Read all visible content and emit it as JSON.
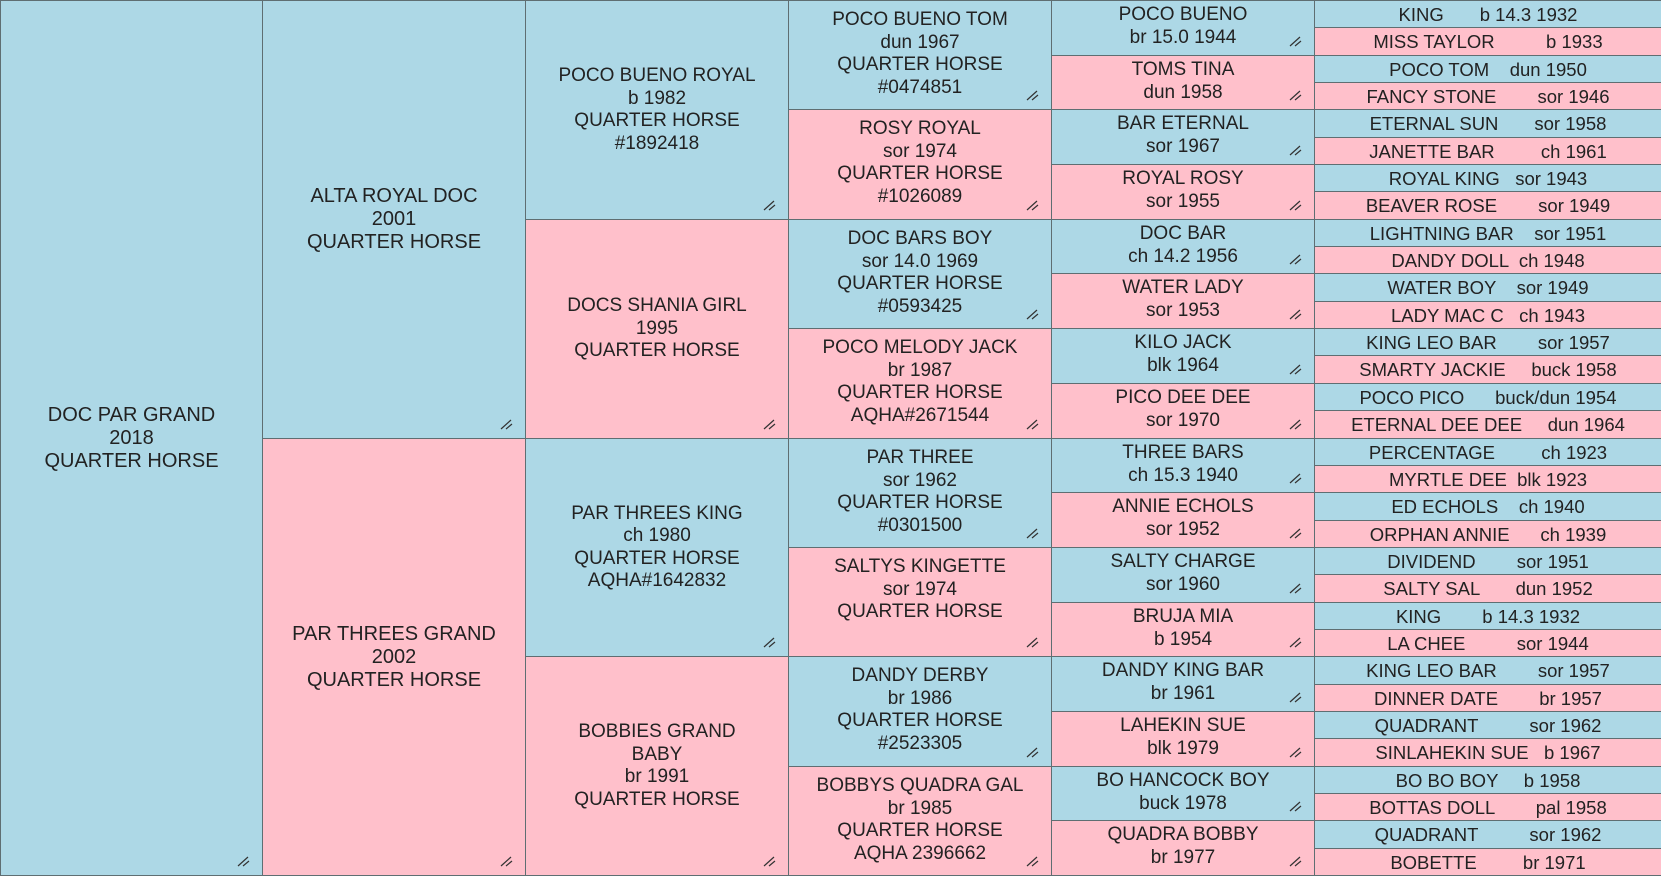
{
  "colors": {
    "male": "#add8e6",
    "female": "#ffc0cb",
    "border": "#5f6e72"
  },
  "icon": "edit-resize-icon",
  "subject": {
    "lines": [
      "DOC PAR GRAND",
      "2018",
      "QUARTER HORSE"
    ],
    "sex": "m"
  },
  "parents": [
    {
      "lines": [
        "ALTA ROYAL DOC",
        "2001",
        "QUARTER HORSE"
      ],
      "sex": "m"
    },
    {
      "lines": [
        "PAR THREES GRAND",
        "2002",
        "QUARTER HORSE"
      ],
      "sex": "f"
    }
  ],
  "grandparents": [
    {
      "lines": [
        "POCO BUENO ROYAL",
        "b 1982",
        "QUARTER HORSE",
        "#1892418"
      ],
      "sex": "m"
    },
    {
      "lines": [
        "DOCS SHANIA GIRL",
        "1995",
        "QUARTER HORSE"
      ],
      "sex": "f"
    },
    {
      "lines": [
        "PAR THREES KING",
        "ch 1980",
        "QUARTER HORSE",
        "AQHA#1642832"
      ],
      "sex": "m"
    },
    {
      "lines": [
        "BOBBIES GRAND",
        "BABY",
        "br 1991",
        "QUARTER HORSE"
      ],
      "sex": "f"
    }
  ],
  "great_grandparents": [
    {
      "lines": [
        "POCO BUENO TOM",
        "dun 1967",
        "QUARTER HORSE",
        "#0474851"
      ],
      "sex": "m"
    },
    {
      "lines": [
        "ROSY ROYAL",
        "sor 1974",
        "QUARTER HORSE",
        "#1026089"
      ],
      "sex": "f"
    },
    {
      "lines": [
        "DOC BARS BOY",
        "sor 14.0 1969",
        "QUARTER HORSE",
        "#0593425"
      ],
      "sex": "m"
    },
    {
      "lines": [
        "POCO MELODY JACK",
        "br 1987",
        "QUARTER HORSE",
        "AQHA#2671544"
      ],
      "sex": "f"
    },
    {
      "lines": [
        "PAR THREE",
        "sor 1962",
        "QUARTER HORSE",
        "#0301500"
      ],
      "sex": "m"
    },
    {
      "lines": [
        "SALTYS KINGETTE",
        "sor 1974",
        "QUARTER HORSE"
      ],
      "sex": "f"
    },
    {
      "lines": [
        "DANDY DERBY",
        "br 1986",
        "QUARTER HORSE",
        "#2523305"
      ],
      "sex": "m"
    },
    {
      "lines": [
        "BOBBYS QUADRA GAL",
        "br 1985",
        "QUARTER HORSE",
        "AQHA 2396662"
      ],
      "sex": "f"
    }
  ],
  "gen5": [
    {
      "lines": [
        "POCO BUENO",
        "br 15.0 1944"
      ],
      "sex": "m"
    },
    {
      "lines": [
        "TOMS TINA",
        "dun 1958"
      ],
      "sex": "f"
    },
    {
      "lines": [
        "BAR ETERNAL",
        "sor 1967"
      ],
      "sex": "m"
    },
    {
      "lines": [
        "ROYAL ROSY",
        "sor 1955"
      ],
      "sex": "f"
    },
    {
      "lines": [
        "DOC BAR",
        "ch 14.2 1956"
      ],
      "sex": "m"
    },
    {
      "lines": [
        "WATER LADY",
        "sor 1953"
      ],
      "sex": "f"
    },
    {
      "lines": [
        "KILO JACK",
        "blk 1964"
      ],
      "sex": "m"
    },
    {
      "lines": [
        "PICO DEE DEE",
        "sor 1970"
      ],
      "sex": "f"
    },
    {
      "lines": [
        "THREE BARS",
        "ch 15.3 1940"
      ],
      "sex": "m"
    },
    {
      "lines": [
        "ANNIE ECHOLS",
        "sor 1952"
      ],
      "sex": "f"
    },
    {
      "lines": [
        "SALTY CHARGE",
        "sor 1960"
      ],
      "sex": "m"
    },
    {
      "lines": [
        "BRUJA MIA",
        "b 1954"
      ],
      "sex": "f"
    },
    {
      "lines": [
        "DANDY KING BAR",
        "br 1961"
      ],
      "sex": "m"
    },
    {
      "lines": [
        "LAHEKIN SUE",
        "blk 1979"
      ],
      "sex": "f"
    },
    {
      "lines": [
        "BO HANCOCK BOY",
        "buck 1978"
      ],
      "sex": "m"
    },
    {
      "lines": [
        "QUADRA BOBBY",
        "br 1977"
      ],
      "sex": "f"
    }
  ],
  "gen6": [
    {
      "lines": [
        "KING       b 14.3 1932"
      ],
      "sex": "m"
    },
    {
      "lines": [
        "MISS TAYLOR          b 1933"
      ],
      "sex": "f"
    },
    {
      "lines": [
        "POCO TOM    dun 1950"
      ],
      "sex": "m"
    },
    {
      "lines": [
        "FANCY STONE        sor 1946"
      ],
      "sex": "f"
    },
    {
      "lines": [
        "ETERNAL SUN       sor 1958"
      ],
      "sex": "m"
    },
    {
      "lines": [
        "JANETTE BAR         ch 1961"
      ],
      "sex": "f"
    },
    {
      "lines": [
        "ROYAL KING   sor 1943"
      ],
      "sex": "m"
    },
    {
      "lines": [
        "BEAVER ROSE        sor 1949"
      ],
      "sex": "f"
    },
    {
      "lines": [
        "LIGHTNING BAR    sor 1951"
      ],
      "sex": "m"
    },
    {
      "lines": [
        "DANDY DOLL  ch 1948"
      ],
      "sex": "f"
    },
    {
      "lines": [
        "WATER BOY    sor 1949"
      ],
      "sex": "m"
    },
    {
      "lines": [
        "LADY MAC C   ch 1943"
      ],
      "sex": "f"
    },
    {
      "lines": [
        "KING LEO BAR        sor 1957"
      ],
      "sex": "m"
    },
    {
      "lines": [
        "SMARTY JACKIE     buck 1958"
      ],
      "sex": "f"
    },
    {
      "lines": [
        "POCO PICO      buck/dun 1954"
      ],
      "sex": "m"
    },
    {
      "lines": [
        "ETERNAL DEE DEE     dun 1964"
      ],
      "sex": "f"
    },
    {
      "lines": [
        "PERCENTAGE         ch 1923"
      ],
      "sex": "m"
    },
    {
      "lines": [
        "MYRTLE DEE  blk 1923"
      ],
      "sex": "f"
    },
    {
      "lines": [
        "ED ECHOLS    ch 1940"
      ],
      "sex": "m"
    },
    {
      "lines": [
        "ORPHAN ANNIE      ch 1939"
      ],
      "sex": "f"
    },
    {
      "lines": [
        "DIVIDEND        sor 1951"
      ],
      "sex": "m"
    },
    {
      "lines": [
        "SALTY SAL       dun 1952"
      ],
      "sex": "f"
    },
    {
      "lines": [
        "KING        b 14.3 1932"
      ],
      "sex": "m"
    },
    {
      "lines": [
        "LA CHEE          sor 1944"
      ],
      "sex": "f"
    },
    {
      "lines": [
        "KING LEO BAR        sor 1957"
      ],
      "sex": "m"
    },
    {
      "lines": [
        "DINNER DATE        br 1957"
      ],
      "sex": "f"
    },
    {
      "lines": [
        "QUADRANT          sor 1962"
      ],
      "sex": "m"
    },
    {
      "lines": [
        "SINLAHEKIN SUE   b 1967"
      ],
      "sex": "f"
    },
    {
      "lines": [
        "BO BO BOY     b 1958"
      ],
      "sex": "m"
    },
    {
      "lines": [
        "BOTTAS DOLL        pal 1958"
      ],
      "sex": "f"
    },
    {
      "lines": [
        "QUADRANT          sor 1962"
      ],
      "sex": "m"
    },
    {
      "lines": [
        "BOBETTE         br 1971"
      ],
      "sex": "f"
    }
  ]
}
